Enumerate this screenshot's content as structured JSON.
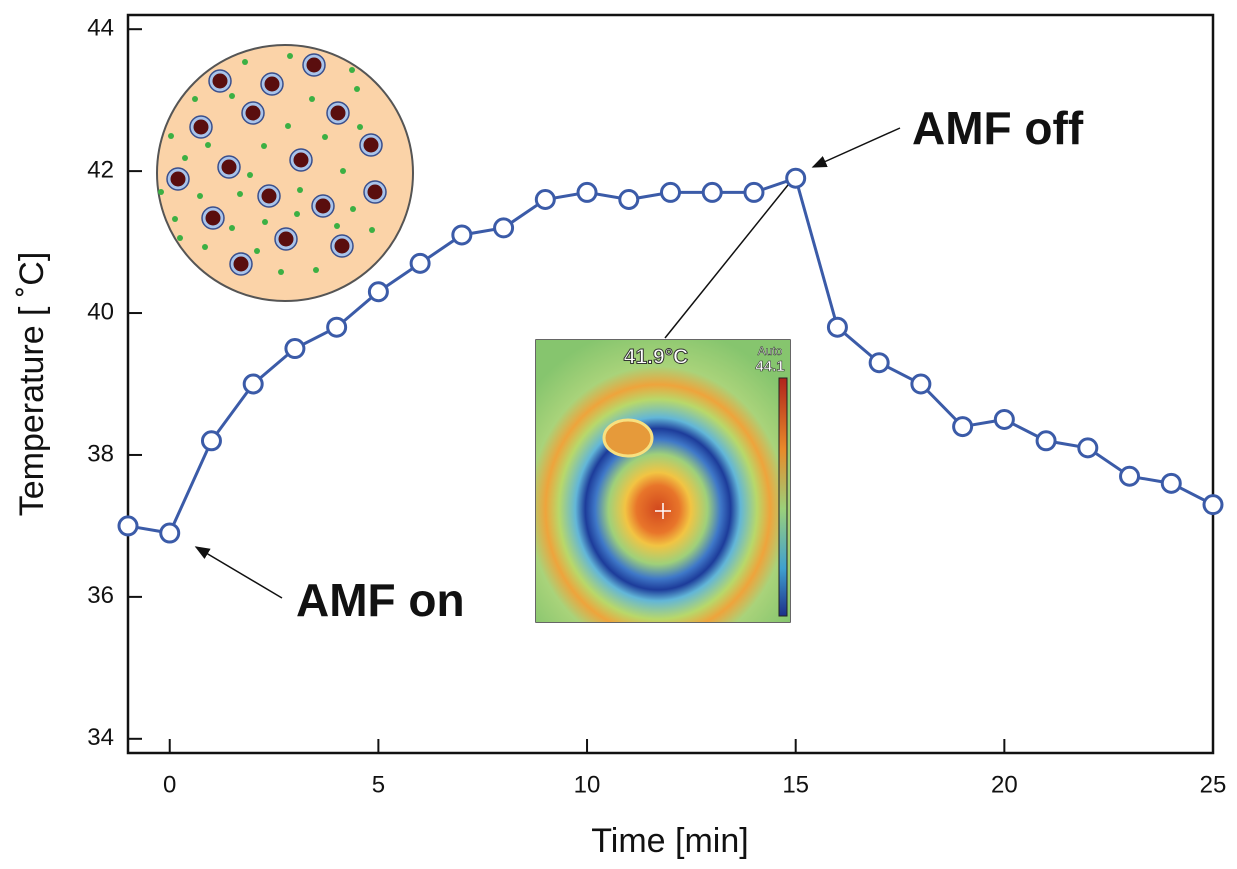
{
  "chart_data": {
    "type": "line",
    "x_label": "Time [min]",
    "y_label": "Temperature [ ˚C]",
    "x": [
      -1,
      0,
      1,
      2,
      3,
      4,
      5,
      6,
      7,
      8,
      9,
      10,
      11,
      12,
      13,
      14,
      15,
      16,
      17,
      18,
      19,
      20,
      21,
      22,
      23,
      24,
      25
    ],
    "series": [
      {
        "color": "#3b5ba8",
        "values": [
          37.0,
          36.9,
          38.2,
          39.0,
          39.5,
          39.8,
          40.3,
          40.7,
          41.1,
          41.2,
          41.6,
          41.7,
          41.6,
          41.7,
          41.7,
          41.7,
          41.9,
          39.8,
          39.3,
          39.0,
          38.4,
          38.5,
          38.2,
          38.1,
          37.7,
          37.6,
          37.3
        ]
      }
    ],
    "xlim": [
      -1,
      25
    ],
    "ylim": [
      33.8,
      44.2
    ],
    "xticks": [
      0,
      5,
      10,
      15,
      20,
      25
    ],
    "yticks": [
      34,
      36,
      38,
      40,
      42,
      44
    ],
    "annotations": [
      "AMF on",
      "AMF off"
    ],
    "inset": {
      "temperature": "41.9°C",
      "mode": "Auto",
      "scale_max": "44.1"
    }
  }
}
